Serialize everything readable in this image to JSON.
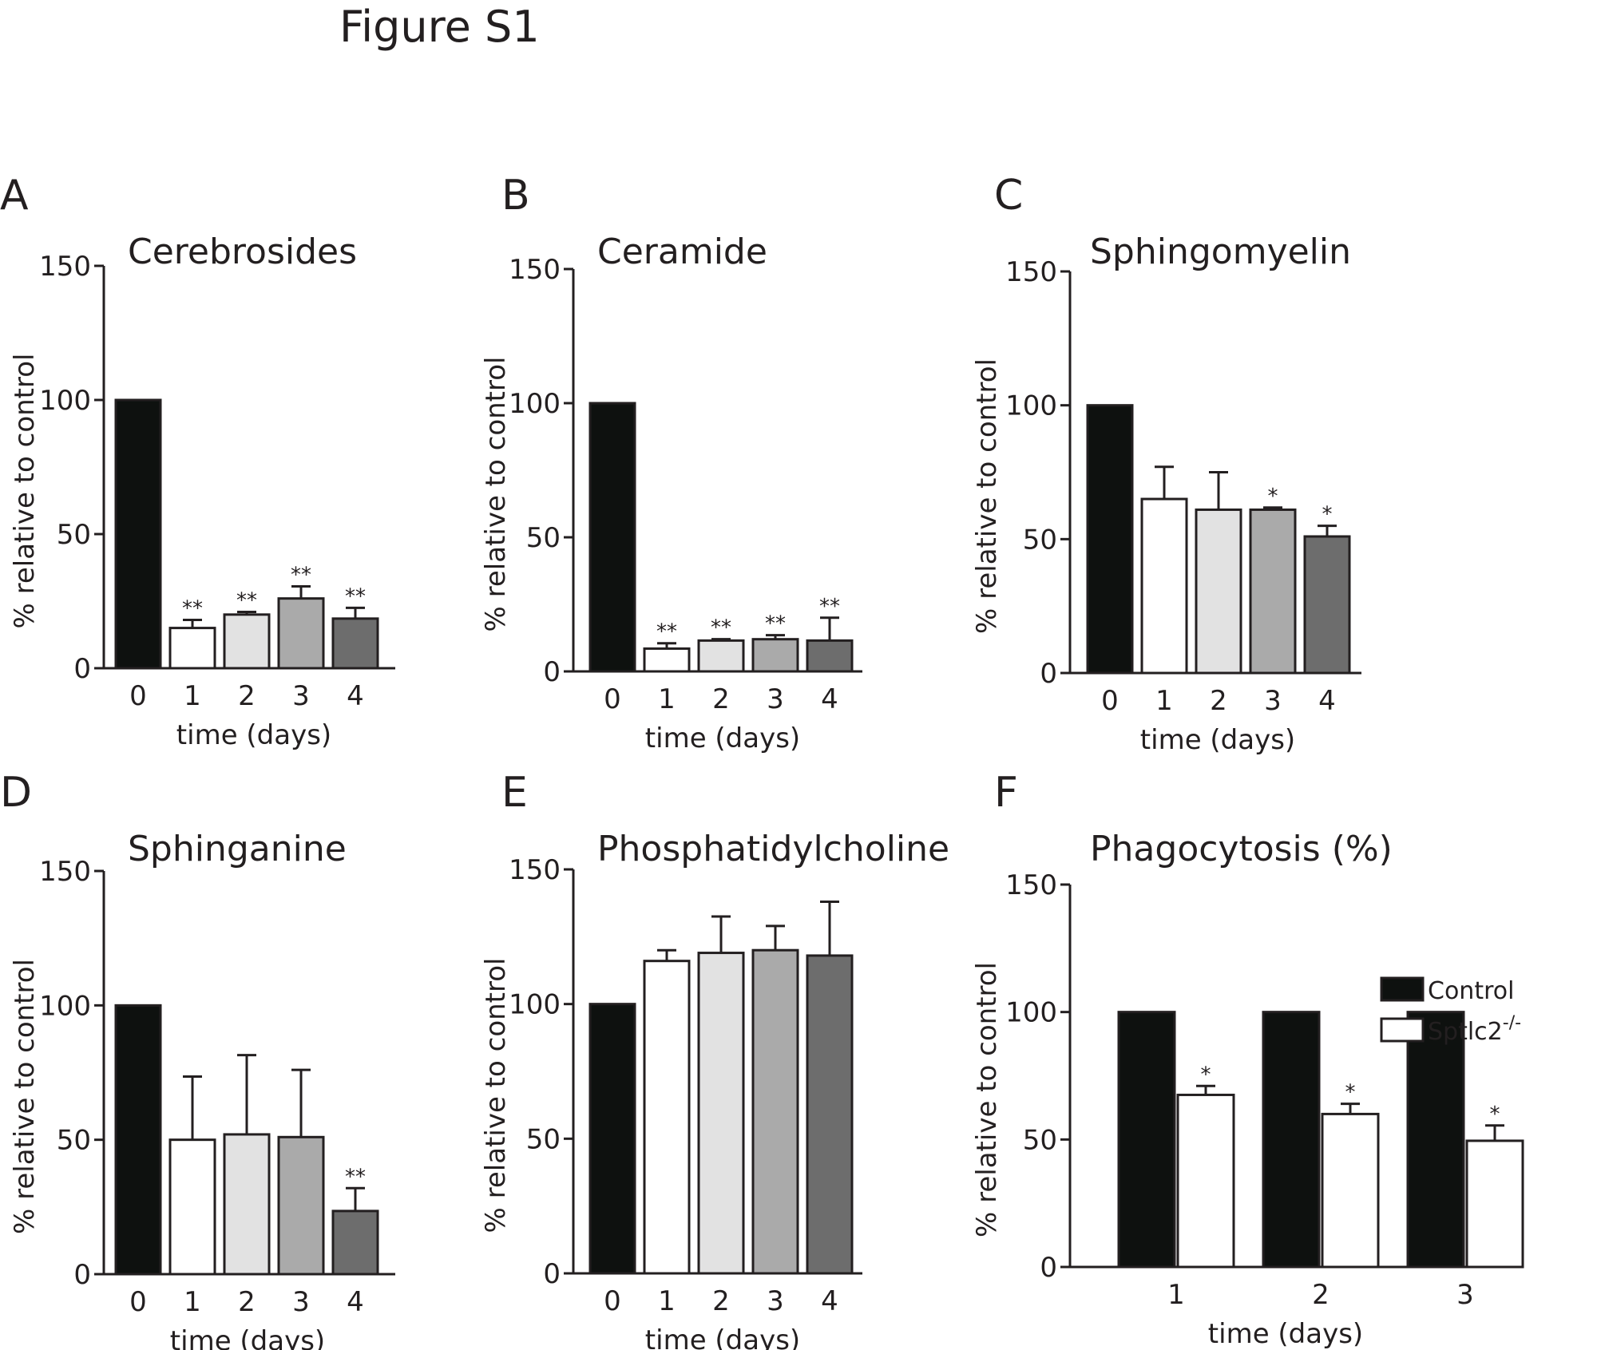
{
  "figure_title": "Figure S1",
  "colors": {
    "day0": "#0e110f",
    "day1": "#ffffff",
    "day2": "#e2e2e2",
    "day3": "#aaaaaa",
    "day4": "#6d6d6d",
    "control": "#0e110f",
    "sptlc2": "#ffffff",
    "outline": "#231f20"
  },
  "chart_data": [
    {
      "letter": "A",
      "type": "bar",
      "title": "Cerebrosides",
      "xlabel": "time (days)",
      "ylabel": "% relative to control",
      "ylim": [
        0,
        150
      ],
      "yticks": [
        0,
        50,
        100,
        150
      ],
      "categories": [
        "0",
        "1",
        "2",
        "3",
        "4"
      ],
      "values": [
        100,
        15,
        20,
        26,
        18.5
      ],
      "errors": [
        0,
        3,
        1,
        4.5,
        4
      ],
      "significance": [
        "",
        "**",
        "**",
        "**",
        "**"
      ]
    },
    {
      "letter": "B",
      "type": "bar",
      "title": "Ceramide",
      "xlabel": "time (days)",
      "ylabel": "% relative to control",
      "ylim": [
        0,
        150
      ],
      "yticks": [
        0,
        50,
        100,
        150
      ],
      "categories": [
        "0",
        "1",
        "2",
        "3",
        "4"
      ],
      "values": [
        100,
        8.5,
        11.5,
        12,
        11.5
      ],
      "errors": [
        0,
        2,
        0.5,
        1.5,
        8.5
      ],
      "significance": [
        "",
        "**",
        "**",
        "**",
        "**"
      ]
    },
    {
      "letter": "C",
      "type": "bar",
      "title": "Sphingomyelin",
      "xlabel": "time (days)",
      "ylabel": "% relative to control",
      "ylim": [
        0,
        150
      ],
      "yticks": [
        0,
        50,
        100,
        150
      ],
      "categories": [
        "0",
        "1",
        "2",
        "3",
        "4"
      ],
      "values": [
        100,
        65,
        61,
        61,
        51
      ],
      "errors": [
        0,
        12,
        14,
        0.8,
        4
      ],
      "significance": [
        "",
        "",
        "",
        "*",
        "*"
      ]
    },
    {
      "letter": "D",
      "type": "bar",
      "title": "Sphinganine",
      "xlabel": "time (days)",
      "ylabel": "% relative to control",
      "ylim": [
        0,
        150
      ],
      "yticks": [
        0,
        50,
        100,
        150
      ],
      "categories": [
        "0",
        "1",
        "2",
        "3",
        "4"
      ],
      "values": [
        100,
        50,
        52,
        51,
        23.5
      ],
      "errors": [
        0,
        23.5,
        29.5,
        25,
        8.5
      ],
      "significance": [
        "",
        "",
        "",
        "",
        "**"
      ]
    },
    {
      "letter": "E",
      "type": "bar",
      "title": "Phosphatidylcholine",
      "xlabel": "time (days)",
      "ylabel": "% relative to control",
      "ylim": [
        0,
        150
      ],
      "yticks": [
        0,
        50,
        100,
        150
      ],
      "categories": [
        "0",
        "1",
        "2",
        "3",
        "4"
      ],
      "values": [
        100,
        116,
        119,
        120,
        118
      ],
      "errors": [
        0,
        4,
        13.5,
        9,
        20
      ],
      "significance": [
        "",
        "",
        "",
        "",
        ""
      ]
    },
    {
      "letter": "F",
      "type": "grouped_bar",
      "title": "Phagocytosis (%)",
      "xlabel": "time (days)",
      "ylabel": "% relative to control",
      "ylim": [
        0,
        150
      ],
      "yticks": [
        0,
        50,
        100,
        150
      ],
      "categories": [
        "1",
        "2",
        "3"
      ],
      "series": [
        {
          "name": "Control",
          "values": [
            100,
            100,
            100
          ],
          "errors": [
            0,
            0,
            0
          ],
          "significance": [
            "",
            "",
            ""
          ]
        },
        {
          "name": "Sptlc2",
          "superscript": "-/-",
          "values": [
            67.5,
            60,
            49.5
          ],
          "errors": [
            3.5,
            4,
            6
          ],
          "significance": [
            "*",
            "*",
            "*"
          ]
        }
      ]
    }
  ]
}
